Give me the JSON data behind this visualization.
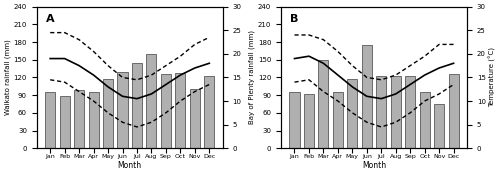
{
  "months": [
    "Jan",
    "Feb",
    "Mar",
    "Apr",
    "May",
    "Jun",
    "Jul",
    "Aug",
    "Sep",
    "Oct",
    "Nov",
    "Dec"
  ],
  "panel_A": {
    "label": "A",
    "ylabel_left": "Waikato rainfall (mm)",
    "rainfall": [
      95,
      88,
      98,
      95,
      118,
      130,
      145,
      160,
      125,
      128,
      100,
      122
    ],
    "temp_mean": [
      19.0,
      19.0,
      17.5,
      15.5,
      13.0,
      11.0,
      10.5,
      11.5,
      13.5,
      15.5,
      17.0,
      18.0
    ],
    "temp_max": [
      24.5,
      24.5,
      23.0,
      20.5,
      17.5,
      15.0,
      14.5,
      15.5,
      17.5,
      19.5,
      22.0,
      23.5
    ],
    "temp_min": [
      14.5,
      14.0,
      12.0,
      10.0,
      7.5,
      5.5,
      4.5,
      5.5,
      7.5,
      10.0,
      12.0,
      13.5
    ]
  },
  "panel_B": {
    "label": "B",
    "ylabel_left": "Bay of Plenty rainfall (mm)",
    "rainfall": [
      95,
      92,
      150,
      95,
      118,
      175,
      122,
      122,
      122,
      95,
      75,
      125
    ],
    "temp_mean": [
      19.0,
      19.5,
      18.0,
      15.5,
      13.0,
      11.0,
      10.5,
      11.5,
      13.5,
      15.5,
      17.0,
      18.0
    ],
    "temp_max": [
      24.0,
      24.0,
      23.0,
      20.5,
      17.5,
      15.0,
      14.5,
      15.5,
      17.5,
      19.5,
      22.0,
      22.0
    ],
    "temp_min": [
      14.0,
      14.5,
      12.0,
      10.0,
      7.5,
      5.5,
      4.5,
      5.5,
      7.5,
      10.0,
      11.5,
      13.5
    ]
  },
  "ylim_rain": [
    0,
    240
  ],
  "ylim_temp": [
    0,
    30
  ],
  "yticks_rain": [
    0,
    30,
    60,
    90,
    120,
    150,
    180,
    210,
    240
  ],
  "yticks_temp": [
    0,
    5,
    10,
    15,
    20,
    25,
    30
  ],
  "bar_color": "#b0b0b0",
  "bar_edgecolor": "#404040",
  "line_color": "#000000",
  "xlabel": "Month",
  "temp_ylabel_right": "Temperature (°C)"
}
